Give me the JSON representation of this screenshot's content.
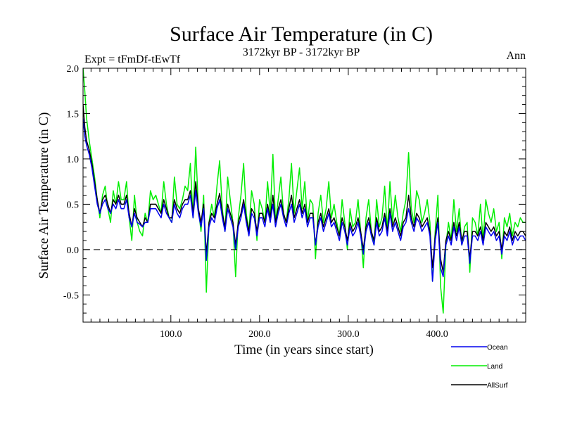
{
  "chart_data": {
    "type": "line",
    "title": "Surface Air Temperature (in C)",
    "subtitle": "3172kyr BP - 3172kyr BP",
    "experiment": "Expt = tFmDf-tEwTf",
    "season": "Ann",
    "xlabel": "Time (in years since start)",
    "ylabel": "Surface Air Temperature (in C)",
    "xlim": [
      1,
      500
    ],
    "ylim": [
      -0.8,
      2.0
    ],
    "xticks": [
      100,
      200,
      300,
      400
    ],
    "xtick_labels": [
      "100.0",
      "200.0",
      "300.0",
      "400.0"
    ],
    "yticks": [
      -0.5,
      0.0,
      0.5,
      1.0,
      1.5,
      2.0
    ],
    "ytick_labels": [
      "-0.5",
      "0.0",
      "0.5",
      "1.0",
      "1.5",
      "2.0"
    ],
    "reference_line": 0.0,
    "legend_position": "bottom-right, outside plot",
    "series": [
      {
        "name": "Land",
        "color": "#00ee00",
        "x": [
          1,
          3,
          5,
          8,
          11,
          14,
          17,
          20,
          23,
          26,
          29,
          32,
          35,
          38,
          41,
          44,
          47,
          50,
          53,
          56,
          59,
          62,
          65,
          68,
          71,
          74,
          77,
          80,
          83,
          86,
          89,
          92,
          95,
          98,
          101,
          104,
          107,
          110,
          113,
          116,
          119,
          122,
          125,
          128,
          131,
          134,
          137,
          140,
          143,
          146,
          149,
          152,
          155,
          158,
          161,
          164,
          167,
          170,
          173,
          176,
          179,
          182,
          185,
          188,
          191,
          194,
          197,
          200,
          203,
          206,
          209,
          212,
          215,
          218,
          221,
          224,
          227,
          230,
          233,
          236,
          239,
          242,
          245,
          248,
          251,
          254,
          257,
          260,
          263,
          266,
          269,
          272,
          275,
          278,
          281,
          284,
          287,
          290,
          293,
          296,
          299,
          302,
          305,
          308,
          311,
          314,
          317,
          320,
          323,
          326,
          329,
          332,
          335,
          338,
          341,
          344,
          347,
          350,
          353,
          356,
          359,
          362,
          365,
          368,
          371,
          374,
          377,
          380,
          383,
          386,
          389,
          392,
          395,
          398,
          401,
          404,
          407,
          410,
          413,
          416,
          419,
          422,
          425,
          428,
          431,
          434,
          437,
          440,
          443,
          446,
          449,
          452,
          455,
          458,
          461,
          464,
          467,
          470,
          473,
          476,
          479,
          482,
          485,
          488,
          491,
          494,
          497,
          500
        ],
        "y": [
          2.0,
          1.75,
          1.45,
          1.2,
          1.0,
          0.8,
          0.55,
          0.35,
          0.6,
          0.7,
          0.45,
          0.3,
          0.65,
          0.5,
          0.75,
          0.55,
          0.55,
          0.75,
          0.35,
          0.1,
          0.6,
          0.3,
          0.2,
          0.15,
          0.4,
          0.3,
          0.65,
          0.55,
          0.6,
          0.5,
          0.4,
          0.75,
          0.5,
          0.35,
          0.3,
          0.8,
          0.5,
          0.45,
          0.55,
          0.7,
          0.65,
          0.95,
          0.35,
          1.13,
          0.45,
          0.2,
          0.6,
          -0.47,
          0.3,
          0.5,
          0.35,
          0.7,
          0.98,
          0.45,
          0.2,
          0.8,
          0.55,
          0.3,
          -0.3,
          0.35,
          0.6,
          0.95,
          0.4,
          0.2,
          0.65,
          0.5,
          0.1,
          0.55,
          0.45,
          0.3,
          0.75,
          0.4,
          1.05,
          0.3,
          0.55,
          0.8,
          0.4,
          0.3,
          0.55,
          0.95,
          0.4,
          0.65,
          0.9,
          0.45,
          0.75,
          0.3,
          0.55,
          0.5,
          -0.1,
          0.4,
          0.6,
          0.3,
          0.45,
          0.75,
          0.35,
          0.5,
          0.3,
          0.15,
          0.55,
          0.3,
          0.0,
          0.45,
          0.25,
          0.3,
          0.55,
          0.2,
          -0.2,
          0.35,
          0.55,
          0.2,
          0.05,
          0.55,
          0.25,
          0.35,
          0.7,
          0.2,
          0.75,
          0.3,
          0.6,
          0.35,
          0.2,
          0.4,
          0.55,
          1.07,
          0.45,
          0.3,
          0.65,
          0.55,
          0.3,
          0.4,
          0.55,
          0.3,
          -0.35,
          0.2,
          0.6,
          -0.4,
          -0.7,
          0.05,
          0.3,
          0.1,
          0.55,
          0.2,
          0.45,
          0.05,
          0.25,
          0.3,
          -0.25,
          0.35,
          0.3,
          0.15,
          0.5,
          0.1,
          0.55,
          0.4,
          0.3,
          0.45,
          0.2,
          0.3,
          -0.1,
          0.35,
          0.25,
          0.4,
          0.15,
          0.3,
          0.25,
          0.35,
          0.3,
          0.3
        ]
      },
      {
        "name": "AllSurf",
        "color": "#000000",
        "x": [
          1,
          3,
          5,
          8,
          11,
          14,
          17,
          20,
          23,
          26,
          29,
          32,
          35,
          38,
          41,
          44,
          47,
          50,
          53,
          56,
          59,
          62,
          65,
          68,
          71,
          74,
          77,
          80,
          83,
          86,
          89,
          92,
          95,
          98,
          101,
          104,
          107,
          110,
          113,
          116,
          119,
          122,
          125,
          128,
          131,
          134,
          137,
          140,
          143,
          146,
          149,
          152,
          155,
          158,
          161,
          164,
          167,
          170,
          173,
          176,
          179,
          182,
          185,
          188,
          191,
          194,
          197,
          200,
          203,
          206,
          209,
          212,
          215,
          218,
          221,
          224,
          227,
          230,
          233,
          236,
          239,
          242,
          245,
          248,
          251,
          254,
          257,
          260,
          263,
          266,
          269,
          272,
          275,
          278,
          281,
          284,
          287,
          290,
          293,
          296,
          299,
          302,
          305,
          308,
          311,
          314,
          317,
          320,
          323,
          326,
          329,
          332,
          335,
          338,
          341,
          344,
          347,
          350,
          353,
          356,
          359,
          362,
          365,
          368,
          371,
          374,
          377,
          380,
          383,
          386,
          389,
          392,
          395,
          398,
          401,
          404,
          407,
          410,
          413,
          416,
          419,
          422,
          425,
          428,
          431,
          434,
          437,
          440,
          443,
          446,
          449,
          452,
          455,
          458,
          461,
          464,
          467,
          470,
          473,
          476,
          479,
          482,
          485,
          488,
          491,
          494,
          497,
          500
        ],
        "y": [
          1.6,
          1.35,
          1.2,
          1.1,
          0.95,
          0.75,
          0.55,
          0.4,
          0.55,
          0.6,
          0.5,
          0.4,
          0.55,
          0.5,
          0.6,
          0.5,
          0.5,
          0.6,
          0.4,
          0.25,
          0.45,
          0.35,
          0.3,
          0.25,
          0.35,
          0.3,
          0.5,
          0.5,
          0.5,
          0.45,
          0.4,
          0.55,
          0.45,
          0.35,
          0.35,
          0.55,
          0.45,
          0.4,
          0.5,
          0.55,
          0.55,
          0.65,
          0.4,
          0.75,
          0.45,
          0.3,
          0.5,
          -0.05,
          0.3,
          0.4,
          0.35,
          0.5,
          0.62,
          0.4,
          0.25,
          0.5,
          0.4,
          0.3,
          0.05,
          0.3,
          0.4,
          0.55,
          0.35,
          0.2,
          0.45,
          0.4,
          0.2,
          0.4,
          0.4,
          0.3,
          0.5,
          0.35,
          0.6,
          0.3,
          0.45,
          0.55,
          0.4,
          0.3,
          0.45,
          0.6,
          0.35,
          0.45,
          0.55,
          0.4,
          0.5,
          0.3,
          0.4,
          0.4,
          0.05,
          0.3,
          0.4,
          0.25,
          0.35,
          0.45,
          0.3,
          0.35,
          0.25,
          0.15,
          0.35,
          0.25,
          0.1,
          0.3,
          0.2,
          0.25,
          0.35,
          0.2,
          0.0,
          0.25,
          0.35,
          0.2,
          0.1,
          0.35,
          0.2,
          0.25,
          0.4,
          0.2,
          0.45,
          0.25,
          0.35,
          0.25,
          0.15,
          0.3,
          0.35,
          0.6,
          0.35,
          0.25,
          0.4,
          0.35,
          0.25,
          0.3,
          0.35,
          0.2,
          -0.2,
          0.15,
          0.35,
          -0.1,
          -0.25,
          0.1,
          0.2,
          0.1,
          0.3,
          0.15,
          0.3,
          0.1,
          0.2,
          0.2,
          -0.1,
          0.2,
          0.2,
          0.15,
          0.25,
          0.1,
          0.3,
          0.25,
          0.2,
          0.25,
          0.15,
          0.2,
          0.0,
          0.2,
          0.15,
          0.25,
          0.1,
          0.2,
          0.15,
          0.2,
          0.2,
          0.15
        ]
      },
      {
        "name": "Ocean",
        "color": "#0000ee",
        "x": [
          1,
          3,
          5,
          8,
          11,
          14,
          17,
          20,
          23,
          26,
          29,
          32,
          35,
          38,
          41,
          44,
          47,
          50,
          53,
          56,
          59,
          62,
          65,
          68,
          71,
          74,
          77,
          80,
          83,
          86,
          89,
          92,
          95,
          98,
          101,
          104,
          107,
          110,
          113,
          116,
          119,
          122,
          125,
          128,
          131,
          134,
          137,
          140,
          143,
          146,
          149,
          152,
          155,
          158,
          161,
          164,
          167,
          170,
          173,
          176,
          179,
          182,
          185,
          188,
          191,
          194,
          197,
          200,
          203,
          206,
          209,
          212,
          215,
          218,
          221,
          224,
          227,
          230,
          233,
          236,
          239,
          242,
          245,
          248,
          251,
          254,
          257,
          260,
          263,
          266,
          269,
          272,
          275,
          278,
          281,
          284,
          287,
          290,
          293,
          296,
          299,
          302,
          305,
          308,
          311,
          314,
          317,
          320,
          323,
          326,
          329,
          332,
          335,
          338,
          341,
          344,
          347,
          350,
          353,
          356,
          359,
          362,
          365,
          368,
          371,
          374,
          377,
          380,
          383,
          386,
          389,
          392,
          395,
          398,
          401,
          404,
          407,
          410,
          413,
          416,
          419,
          422,
          425,
          428,
          431,
          434,
          437,
          440,
          443,
          446,
          449,
          452,
          455,
          458,
          461,
          464,
          467,
          470,
          473,
          476,
          479,
          482,
          485,
          488,
          491,
          494,
          497,
          500
        ],
        "y": [
          1.45,
          1.25,
          1.15,
          1.05,
          0.9,
          0.7,
          0.5,
          0.4,
          0.5,
          0.55,
          0.45,
          0.4,
          0.5,
          0.45,
          0.55,
          0.45,
          0.45,
          0.55,
          0.35,
          0.25,
          0.4,
          0.3,
          0.28,
          0.25,
          0.3,
          0.3,
          0.45,
          0.45,
          0.45,
          0.4,
          0.35,
          0.5,
          0.4,
          0.35,
          0.3,
          0.5,
          0.4,
          0.35,
          0.45,
          0.5,
          0.5,
          0.6,
          0.35,
          0.65,
          0.4,
          0.25,
          0.45,
          -0.12,
          0.25,
          0.35,
          0.3,
          0.45,
          0.55,
          0.35,
          0.2,
          0.45,
          0.35,
          0.25,
          0.0,
          0.25,
          0.35,
          0.5,
          0.3,
          0.15,
          0.4,
          0.35,
          0.15,
          0.35,
          0.35,
          0.25,
          0.45,
          0.3,
          0.5,
          0.25,
          0.4,
          0.5,
          0.35,
          0.25,
          0.4,
          0.5,
          0.3,
          0.4,
          0.5,
          0.35,
          0.45,
          0.25,
          0.35,
          0.35,
          0.05,
          0.25,
          0.35,
          0.2,
          0.3,
          0.4,
          0.25,
          0.3,
          0.2,
          0.1,
          0.3,
          0.2,
          0.05,
          0.25,
          0.15,
          0.2,
          0.3,
          0.15,
          -0.05,
          0.2,
          0.3,
          0.15,
          0.05,
          0.3,
          0.15,
          0.2,
          0.35,
          0.15,
          0.4,
          0.2,
          0.3,
          0.2,
          0.1,
          0.25,
          0.3,
          0.45,
          0.3,
          0.2,
          0.35,
          0.3,
          0.2,
          0.25,
          0.3,
          0.15,
          -0.35,
          0.1,
          0.3,
          -0.2,
          -0.3,
          0.05,
          0.15,
          0.05,
          0.25,
          0.1,
          0.25,
          0.05,
          0.15,
          0.15,
          -0.15,
          0.15,
          0.15,
          0.1,
          0.2,
          0.05,
          0.25,
          0.2,
          0.15,
          0.2,
          0.1,
          0.15,
          -0.05,
          0.15,
          0.1,
          0.2,
          0.05,
          0.15,
          0.1,
          0.15,
          0.15,
          0.1
        ]
      }
    ]
  }
}
